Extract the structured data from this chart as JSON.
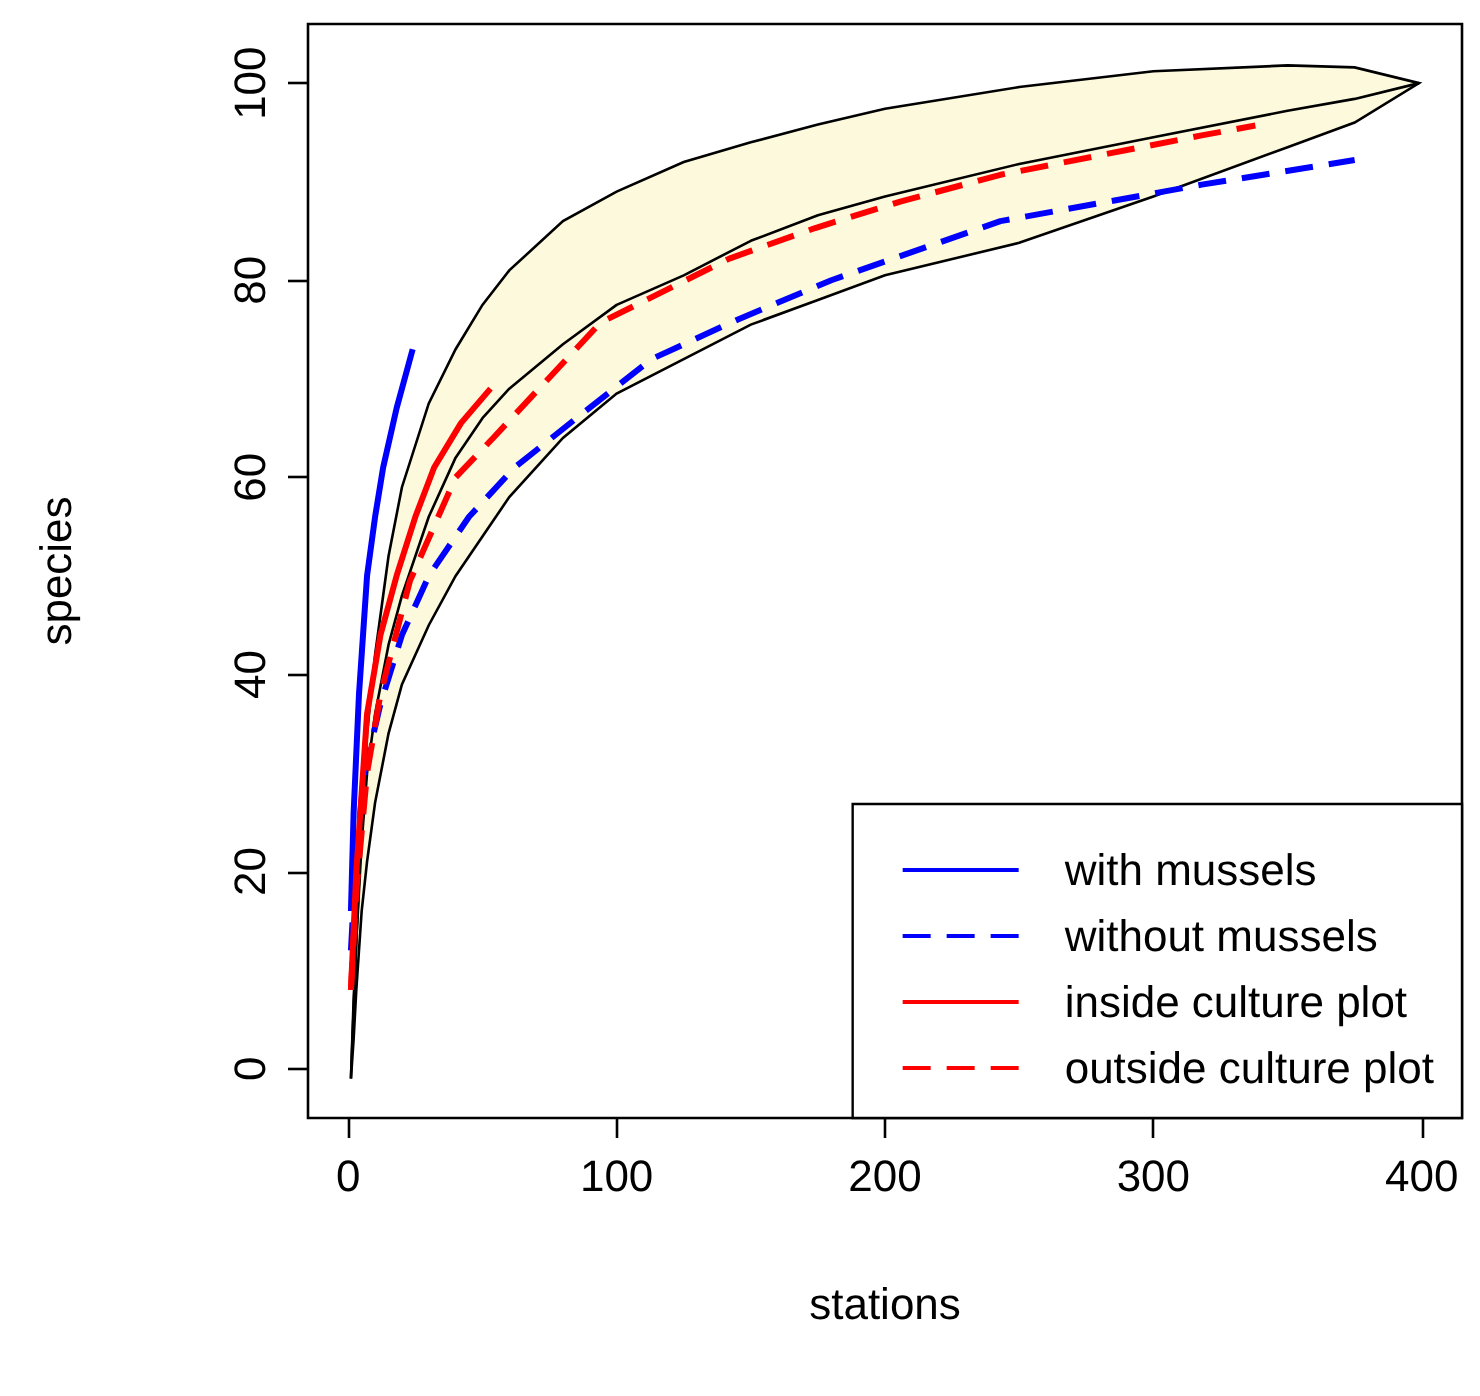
{
  "chart_data": {
    "type": "line",
    "xlabel": "stations",
    "ylabel": "species",
    "xlim": [
      -15,
      415
    ],
    "xticks": [
      0,
      100,
      200,
      300,
      400
    ],
    "ylim": [
      -5,
      106
    ],
    "yticks": [
      0,
      20,
      40,
      60,
      80,
      100
    ],
    "grid": false,
    "legend": "bottom right",
    "marker": "none",
    "series": [
      {
        "color": "#000000",
        "line_style": "solid",
        "x": [
          1,
          2,
          3,
          5,
          7,
          10,
          15,
          20,
          30,
          40,
          50,
          60,
          80,
          100,
          125,
          150,
          175,
          200,
          250,
          300,
          350,
          375,
          399
        ],
        "values": [
          -1,
          7,
          13,
          23,
          30,
          36,
          43,
          48,
          56,
          62,
          66,
          69,
          73.5,
          77.5,
          80.5,
          84,
          86.6,
          88.5,
          91.8,
          94.5,
          97.2,
          98.4,
          100
        ],
        "lower": [
          -1,
          3,
          8,
          16,
          21,
          27,
          34,
          39,
          45,
          50,
          54,
          58,
          64,
          68.5,
          72,
          75.5,
          78,
          80.5,
          83.8,
          88.5,
          93.5,
          96,
          100
        ],
        "upper": [
          -1,
          6,
          13,
          25,
          34,
          42,
          52,
          59,
          67.5,
          73,
          77.5,
          81,
          86,
          89,
          92,
          94,
          95.8,
          97.4,
          99.6,
          101.2,
          101.8,
          101.6,
          100
        ]
      },
      {
        "name": "with mussels",
        "color": "#0000ff",
        "line_style": "solid",
        "x": [
          1,
          2,
          4,
          7,
          10,
          13,
          18,
          24
        ],
        "values": [
          16,
          26,
          38,
          50,
          56,
          61,
          67,
          73
        ]
      },
      {
        "name": "without mussels",
        "color": "#0000ff",
        "line_style": "dashed",
        "x": [
          1,
          3,
          6,
          12,
          20,
          30,
          45,
          62,
          85,
          113,
          145,
          180,
          243,
          318,
          375
        ],
        "values": [
          12,
          22,
          30,
          37,
          44,
          50,
          56,
          61,
          66,
          72,
          76,
          80,
          86,
          89.7,
          92.2
        ]
      },
      {
        "name": "inside culture plot",
        "color": "#ff0000",
        "line_style": "solid",
        "x": [
          1,
          3,
          7,
          12,
          18,
          25,
          32,
          42,
          53
        ],
        "values": [
          8,
          20,
          36,
          44,
          50,
          56,
          61,
          65.5,
          69
        ]
      },
      {
        "name": "outside culture plot",
        "color": "#ff0000",
        "line_style": "dashed",
        "x": [
          1,
          3,
          7,
          12,
          23,
          40,
          54,
          94,
          142,
          174,
          206,
          243,
          318,
          338
        ],
        "values": [
          8,
          18,
          30,
          38,
          49.5,
          60,
          64,
          75.7,
          82.2,
          85.3,
          88,
          90.7,
          94.7,
          95.7
        ]
      }
    ]
  }
}
